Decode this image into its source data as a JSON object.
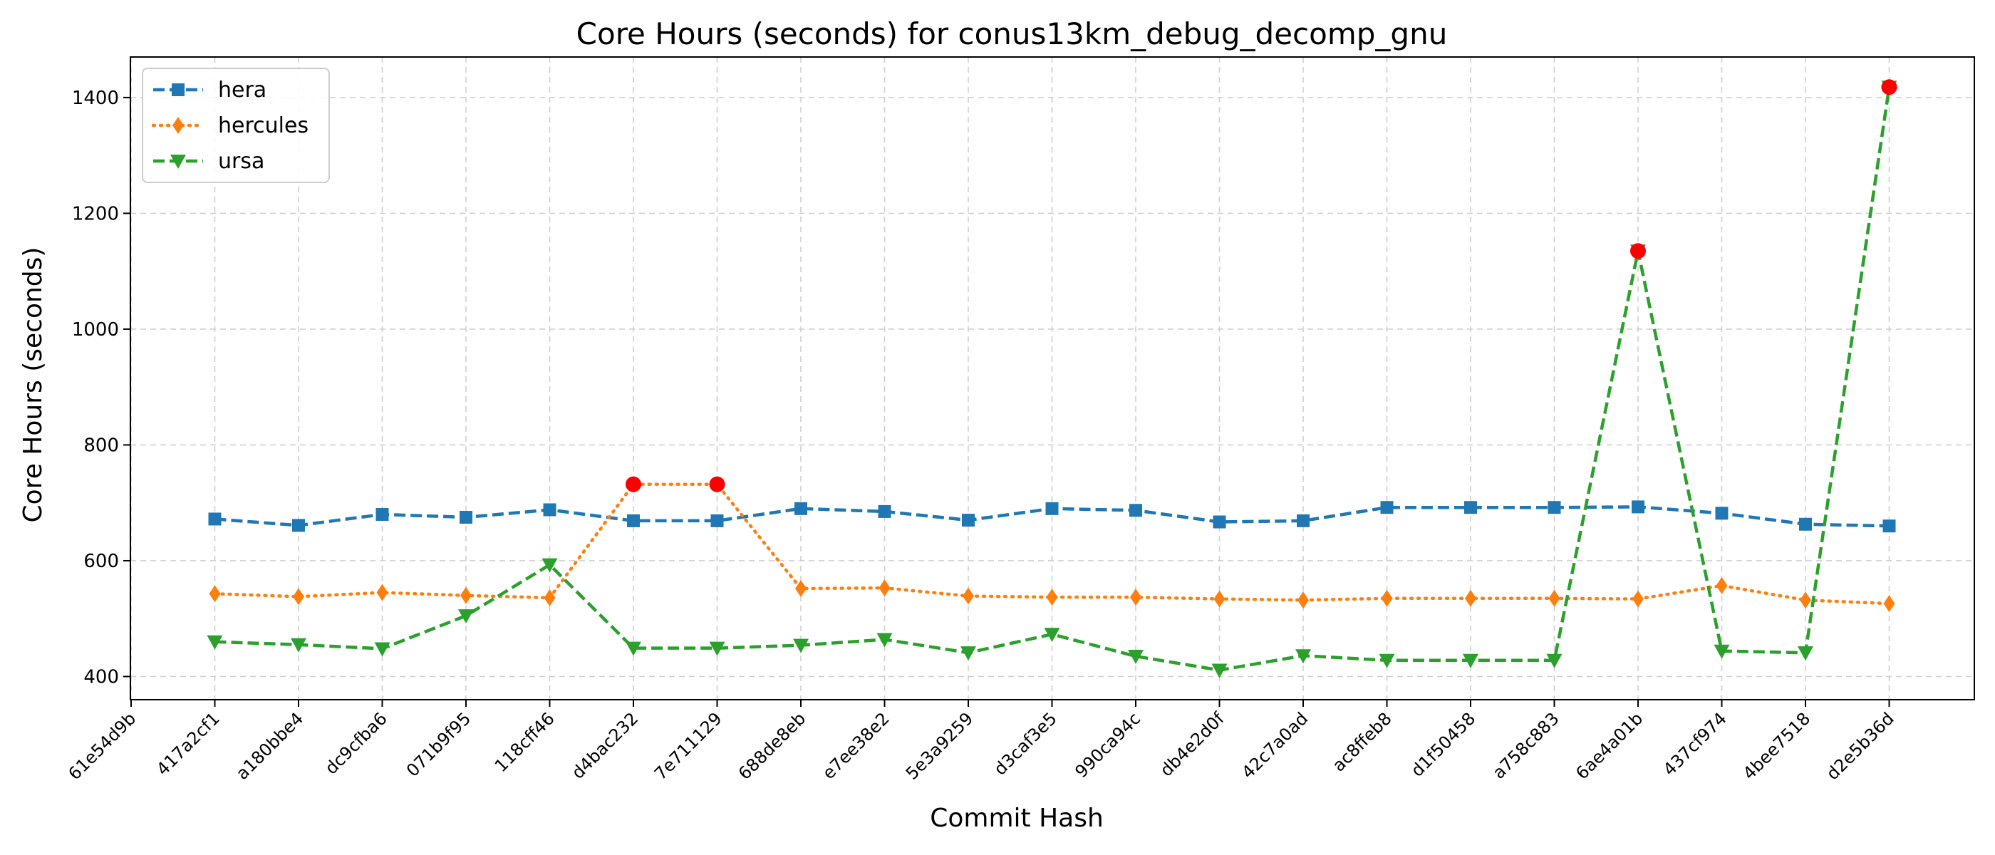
{
  "chart_data": {
    "type": "line",
    "title": "Core Hours (seconds) for conus13km_debug_decomp_gnu",
    "xlabel": "Commit Hash",
    "ylabel": "Core Hours (seconds)",
    "ylim": [
      360,
      1470
    ],
    "yticks": [
      400,
      600,
      800,
      1000,
      1200,
      1400
    ],
    "grid": true,
    "legend_position": "top-left",
    "categories": [
      "61e54d9b",
      "417a2cf1",
      "a180bbe4",
      "dc9cfba6",
      "071b9f95",
      "118cff46",
      "d4bac232",
      "7e711129",
      "688de8eb",
      "e7ee38e2",
      "5e3a9259",
      "d3caf3e5",
      "990ca94c",
      "db4e2d0f",
      "42c7a0ad",
      "ac8ffeb8",
      "d1f50458",
      "a758c883",
      "6ae4a01b",
      "437cf974",
      "4bee7518",
      "d2e5b36d"
    ],
    "series": [
      {
        "name": "hera",
        "color": "#1f77b4",
        "marker": "square",
        "linestyle": "dashed",
        "values": [
          null,
          672,
          661,
          680,
          675,
          688,
          669,
          669,
          690,
          685,
          670,
          690,
          687,
          667,
          669,
          692,
          692,
          692,
          693,
          682,
          663,
          660
        ]
      },
      {
        "name": "hercules",
        "color": "#ff7f0e",
        "marker": "diamond",
        "linestyle": "dotted",
        "values": [
          null,
          543,
          538,
          545,
          540,
          536,
          732,
          732,
          552,
          553,
          539,
          537,
          537,
          534,
          532,
          535,
          535,
          535,
          534,
          557,
          532,
          526
        ]
      },
      {
        "name": "ursa",
        "color": "#2ca02c",
        "marker": "triangle-down",
        "linestyle": "dashed",
        "values": [
          null,
          460,
          455,
          448,
          505,
          593,
          449,
          449,
          454,
          464,
          441,
          473,
          435,
          411,
          436,
          428,
          428,
          428,
          1135,
          444,
          441,
          1418
        ]
      }
    ],
    "highlighted_points": [
      {
        "series": "hercules",
        "category": "d4bac232",
        "value": 732
      },
      {
        "series": "hercules",
        "category": "7e711129",
        "value": 732
      },
      {
        "series": "ursa",
        "category": "6ae4a01b",
        "value": 1135
      },
      {
        "series": "ursa",
        "category": "d2e5b36d",
        "value": 1418
      }
    ],
    "highlight_color": "#ff0000"
  }
}
